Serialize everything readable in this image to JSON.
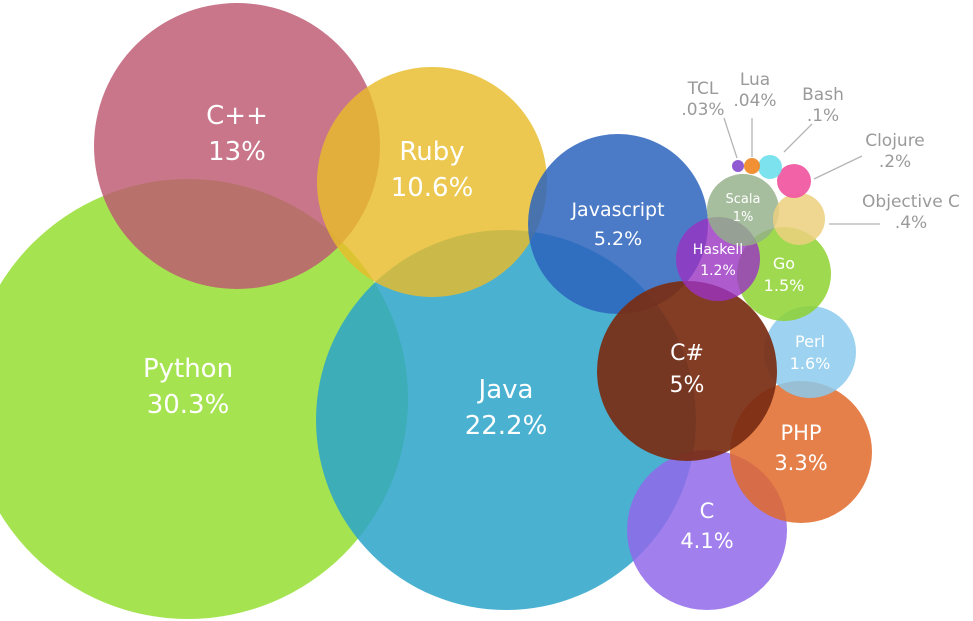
{
  "chart_data": {
    "type": "bubble",
    "title": "",
    "unit": "%",
    "series": [
      {
        "name": "Python",
        "value_label": "30.3%",
        "value": 30.3,
        "color": "#9be03e"
      },
      {
        "name": "Java",
        "value_label": "22.2%",
        "value": 22.2,
        "color": "#2aa3c9"
      },
      {
        "name": "C++",
        "value_label": "13%",
        "value": 13,
        "color": "#bd5871"
      },
      {
        "name": "Ruby",
        "value_label": "10.6%",
        "value": 10.6,
        "color": "#e8bc2b"
      },
      {
        "name": "Javascript",
        "value_label": "5.2%",
        "value": 5.2,
        "color": "#2c64bd"
      },
      {
        "name": "C#",
        "value_label": "5%",
        "value": 5,
        "color": "#7a2d12"
      },
      {
        "name": "C",
        "value_label": "4.1%",
        "value": 4.1,
        "color": "#9068ea"
      },
      {
        "name": "PHP",
        "value_label": "3.3%",
        "value": 3.3,
        "color": "#e06a2a"
      },
      {
        "name": "Perl",
        "value_label": "1.6%",
        "value": 1.6,
        "color": "#8ccaed"
      },
      {
        "name": "Go",
        "value_label": "1.5%",
        "value": 1.5,
        "color": "#8ed230"
      },
      {
        "name": "Haskell",
        "value_label": "1.2%",
        "value": 1.2,
        "color": "#9a32c2"
      },
      {
        "name": "Scala",
        "value_label": "1%",
        "value": 1,
        "color": "#93b089"
      },
      {
        "name": "Objective C",
        "value_label": ".4%",
        "value": 0.4,
        "color": "#ecd07f"
      },
      {
        "name": "Clojure",
        "value_label": ".2%",
        "value": 0.2,
        "color": "#f05aa2"
      },
      {
        "name": "Bash",
        "value_label": ".1%",
        "value": 0.1,
        "color": "#6ee0ec"
      },
      {
        "name": "Lua",
        "value_label": ".04%",
        "value": 0.04,
        "color": "#f08a2a"
      },
      {
        "name": "TCL",
        "value_label": ".03%",
        "value": 0.03,
        "color": "#8a52d0"
      }
    ]
  }
}
